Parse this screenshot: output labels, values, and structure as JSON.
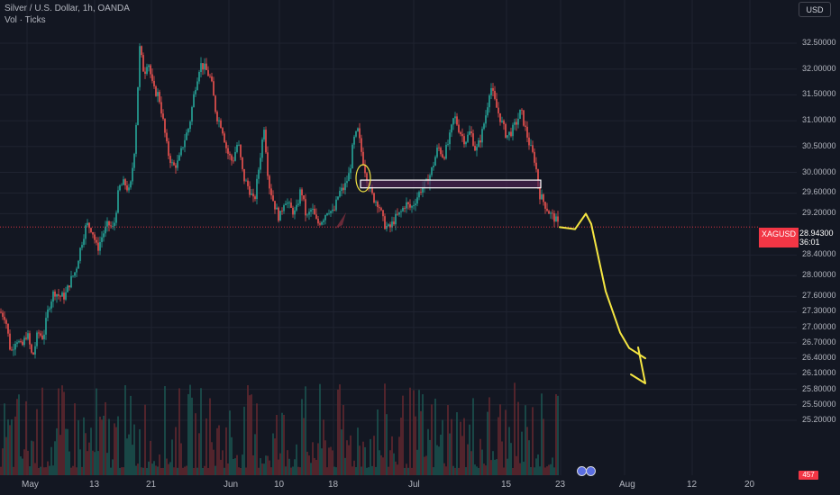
{
  "header": {
    "title": "Silver / U.S. Dollar, 1h, OANDA",
    "indicator": "Vol · Ticks"
  },
  "currency_button": "USD",
  "price_axis": {
    "labels": [
      "32.50000",
      "32.00000",
      "31.50000",
      "31.00000",
      "30.50000",
      "30.00000",
      "29.60000",
      "29.20000",
      "28.40000",
      "28.00000",
      "27.60000",
      "27.30000",
      "27.00000",
      "26.70000",
      "26.40000",
      "26.10000",
      "25.80000",
      "25.50000",
      "25.20000"
    ]
  },
  "current_price": {
    "symbol": "XAGUSD",
    "value": "28.94300",
    "countdown": "36:01"
  },
  "volume_badge": "457",
  "time_axis": {
    "labels": [
      "May",
      "13",
      "21",
      "Jun",
      "10",
      "18",
      "Jul",
      "15",
      "23",
      "Aug",
      "12",
      "20"
    ]
  },
  "colors": {
    "background": "#131722",
    "up": "#26a69a",
    "down": "#ef5350",
    "annotation": "#f5e642",
    "zone_fill": "#4a2350",
    "price_badge": "#f23645"
  },
  "icons": [
    "event-flag-icon"
  ],
  "chart_data": {
    "type": "candlestick",
    "symbol": "XAGUSD",
    "interval": "1h",
    "y_range": [
      25.0,
      32.8
    ],
    "current_price": 28.943,
    "path": [
      [
        0,
        27.3
      ],
      [
        6,
        27.2
      ],
      [
        12,
        26.5
      ],
      [
        18,
        26.8
      ],
      [
        24,
        26.6
      ],
      [
        30,
        26.9
      ],
      [
        36,
        26.4
      ],
      [
        42,
        26.9
      ],
      [
        48,
        26.8
      ],
      [
        54,
        27.4
      ],
      [
        60,
        27.7
      ],
      [
        66,
        27.6
      ],
      [
        72,
        27.6
      ],
      [
        78,
        27.9
      ],
      [
        84,
        28.1
      ],
      [
        90,
        28.6
      ],
      [
        96,
        29.0
      ],
      [
        102,
        28.9
      ],
      [
        108,
        28.5
      ],
      [
        114,
        28.8
      ],
      [
        120,
        29.0
      ],
      [
        126,
        28.9
      ],
      [
        132,
        29.7
      ],
      [
        138,
        29.8
      ],
      [
        144,
        29.6
      ],
      [
        150,
        30.6
      ],
      [
        155,
        32.4
      ],
      [
        160,
        31.9
      ],
      [
        164,
        32.2
      ],
      [
        170,
        31.6
      ],
      [
        176,
        31.5
      ],
      [
        180,
        31.1
      ],
      [
        186,
        30.4
      ],
      [
        192,
        30.1
      ],
      [
        198,
        30.2
      ],
      [
        204,
        30.6
      ],
      [
        210,
        30.9
      ],
      [
        216,
        31.6
      ],
      [
        222,
        32.1
      ],
      [
        228,
        32.0
      ],
      [
        234,
        31.8
      ],
      [
        240,
        31.1
      ],
      [
        246,
        30.9
      ],
      [
        252,
        30.4
      ],
      [
        258,
        30.2
      ],
      [
        264,
        30.6
      ],
      [
        270,
        29.9
      ],
      [
        276,
        29.7
      ],
      [
        282,
        29.4
      ],
      [
        288,
        30.2
      ],
      [
        293,
        30.9
      ],
      [
        298,
        29.8
      ],
      [
        304,
        29.4
      ],
      [
        310,
        29.1
      ],
      [
        316,
        29.5
      ],
      [
        322,
        29.3
      ],
      [
        328,
        29.2
      ],
      [
        334,
        29.7
      ],
      [
        340,
        29.1
      ],
      [
        346,
        29.3
      ],
      [
        352,
        29.0
      ],
      [
        358,
        29.1
      ],
      [
        364,
        29.3
      ],
      [
        370,
        29.2
      ],
      [
        376,
        29.6
      ],
      [
        382,
        29.7
      ],
      [
        388,
        30.0
      ],
      [
        392,
        30.6
      ],
      [
        397,
        30.8
      ],
      [
        402,
        30.3
      ],
      [
        408,
        29.8
      ],
      [
        414,
        29.5
      ],
      [
        420,
        29.4
      ],
      [
        426,
        29.0
      ],
      [
        432,
        28.9
      ],
      [
        438,
        29.1
      ],
      [
        444,
        29.2
      ],
      [
        450,
        29.4
      ],
      [
        456,
        29.3
      ],
      [
        462,
        29.5
      ],
      [
        468,
        29.7
      ],
      [
        474,
        29.8
      ],
      [
        480,
        30.1
      ],
      [
        486,
        30.5
      ],
      [
        492,
        30.3
      ],
      [
        498,
        30.6
      ],
      [
        504,
        31.1
      ],
      [
        510,
        30.8
      ],
      [
        516,
        30.6
      ],
      [
        522,
        30.8
      ],
      [
        528,
        30.4
      ],
      [
        534,
        30.7
      ],
      [
        540,
        31.2
      ],
      [
        544,
        31.7
      ],
      [
        550,
        31.3
      ],
      [
        556,
        31.0
      ],
      [
        562,
        30.7
      ],
      [
        568,
        30.8
      ],
      [
        574,
        31.0
      ],
      [
        578,
        31.2
      ],
      [
        582,
        30.9
      ],
      [
        588,
        30.5
      ],
      [
        594,
        30.2
      ],
      [
        598,
        29.6
      ],
      [
        604,
        29.4
      ],
      [
        610,
        29.2
      ],
      [
        616,
        29.1
      ],
      [
        620,
        28.94
      ]
    ],
    "resistance_zone": [
      29.7,
      29.85
    ],
    "projection": [
      [
        621,
        28.94
      ],
      [
        638,
        28.9
      ],
      [
        650,
        29.2
      ],
      [
        656,
        29.0
      ],
      [
        672,
        27.7
      ],
      [
        688,
        26.9
      ],
      [
        698,
        26.6
      ],
      [
        716,
        26.4
      ]
    ]
  }
}
